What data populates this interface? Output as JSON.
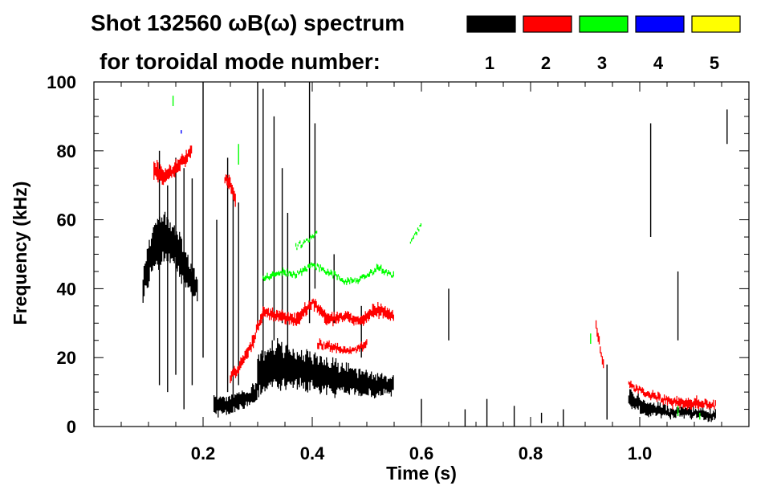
{
  "header": {
    "title": "Shot 132560 ωB(ω) spectrum",
    "subtitle": "for toroidal mode number:"
  },
  "legend": [
    {
      "label": "1",
      "color": "#000000"
    },
    {
      "label": "2",
      "color": "#ff0000"
    },
    {
      "label": "3",
      "color": "#00ff00"
    },
    {
      "label": "4",
      "color": "#0000ff"
    },
    {
      "label": "5",
      "color": "#ffff00"
    }
  ],
  "chart_data": {
    "type": "heatmap",
    "title": "Shot 132560 ωB(ω) spectrum",
    "xlabel": "Time (s)",
    "ylabel": "Frequency (kHz)",
    "xlim": [
      0.0,
      1.2
    ],
    "ylim": [
      0,
      100
    ],
    "x_ticks": [
      0.2,
      0.4,
      0.6,
      0.8,
      1.0
    ],
    "x_tick_labels": [
      "0.2",
      "0.4",
      "0.6",
      "0.8",
      "1.0"
    ],
    "y_ticks": [
      0,
      20,
      40,
      60,
      80,
      100
    ],
    "y_tick_labels": [
      "0",
      "20",
      "40",
      "60",
      "80",
      "100"
    ],
    "series": [
      {
        "name": "n=1",
        "color": "#000000",
        "ridges": [
          {
            "t": [
              0.09,
              0.11,
              0.13,
              0.15,
              0.17,
              0.19
            ],
            "f": [
              42,
              52,
              55,
              52,
              45,
              40
            ],
            "w": [
              10,
              14,
              14,
              14,
              12,
              8
            ]
          },
          {
            "t": [
              0.22,
              0.25,
              0.28,
              0.3
            ],
            "f": [
              6,
              6,
              8,
              10
            ],
            "w": [
              6,
              5,
              5,
              6
            ]
          },
          {
            "t": [
              0.3,
              0.33,
              0.36,
              0.39,
              0.42,
              0.45,
              0.48,
              0.51,
              0.55
            ],
            "f": [
              15,
              18,
              17,
              16,
              15,
              14,
              13,
              12,
              12
            ],
            "w": [
              12,
              14,
              12,
              12,
              11,
              10,
              8,
              7,
              5
            ]
          },
          {
            "t": [
              0.98,
              1.02,
              1.06,
              1.1,
              1.14
            ],
            "f": [
              8,
              5,
              4,
              4,
              3
            ],
            "w": [
              5,
              4,
              3,
              3,
              3
            ]
          }
        ],
        "streaks": [
          {
            "t": 0.12,
            "f": [
              12,
              80
            ]
          },
          {
            "t": 0.135,
            "f": [
              10,
              70
            ]
          },
          {
            "t": 0.15,
            "f": [
              15,
              78
            ]
          },
          {
            "t": 0.165,
            "f": [
              5,
              75
            ]
          },
          {
            "t": 0.18,
            "f": [
              12,
              72
            ]
          },
          {
            "t": 0.2,
            "f": [
              20,
              100
            ]
          },
          {
            "t": 0.225,
            "f": [
              5,
              60
            ]
          },
          {
            "t": 0.245,
            "f": [
              10,
              78
            ]
          },
          {
            "t": 0.255,
            "f": [
              8,
              68
            ]
          },
          {
            "t": 0.265,
            "f": [
              12,
              65
            ]
          },
          {
            "t": 0.3,
            "f": [
              30,
              100
            ]
          },
          {
            "t": 0.31,
            "f": [
              20,
              98
            ]
          },
          {
            "t": 0.33,
            "f": [
              25,
              90
            ]
          },
          {
            "t": 0.345,
            "f": [
              30,
              75
            ]
          },
          {
            "t": 0.355,
            "f": [
              20,
              62
            ]
          },
          {
            "t": 0.395,
            "f": [
              30,
              100
            ]
          },
          {
            "t": 0.405,
            "f": [
              40,
              88
            ]
          },
          {
            "t": 0.44,
            "f": [
              30,
              50
            ]
          },
          {
            "t": 0.49,
            "f": [
              20,
              35
            ]
          },
          {
            "t": 0.6,
            "f": [
              1,
              8
            ]
          },
          {
            "t": 0.68,
            "f": [
              0,
              5
            ]
          },
          {
            "t": 0.72,
            "f": [
              0,
              8
            ]
          },
          {
            "t": 0.77,
            "f": [
              0,
              6
            ]
          },
          {
            "t": 0.82,
            "f": [
              1,
              4
            ]
          },
          {
            "t": 0.86,
            "f": [
              0,
              5
            ]
          },
          {
            "t": 0.94,
            "f": [
              2,
              18
            ]
          },
          {
            "t": 1.02,
            "f": [
              55,
              88
            ]
          },
          {
            "t": 1.07,
            "f": [
              25,
              45
            ]
          },
          {
            "t": 1.16,
            "f": [
              82,
              92
            ]
          },
          {
            "t": 0.65,
            "f": [
              25,
              40
            ]
          }
        ]
      },
      {
        "name": "n=2",
        "color": "#ff0000",
        "ridges": [
          {
            "t": [
              0.11,
              0.13,
              0.15,
              0.17,
              0.18
            ],
            "f": [
              75,
              72,
              75,
              78,
              80
            ],
            "w": [
              6,
              5,
              4,
              4,
              4
            ]
          },
          {
            "t": [
              0.24,
              0.25,
              0.26
            ],
            "f": [
              72,
              70,
              66
            ],
            "w": [
              4,
              4,
              4
            ]
          },
          {
            "t": [
              0.25,
              0.27,
              0.29,
              0.3,
              0.31
            ],
            "f": [
              14,
              18,
              24,
              29,
              32
            ],
            "w": [
              3,
              3,
              4,
              4,
              4
            ]
          },
          {
            "t": [
              0.31,
              0.34,
              0.37,
              0.4,
              0.43,
              0.46,
              0.49,
              0.52,
              0.55
            ],
            "f": [
              33,
              32,
              31,
              36,
              31,
              32,
              31,
              34,
              32
            ],
            "w": [
              3,
              3,
              4,
              3,
              4,
              3,
              3,
              4,
              3
            ]
          },
          {
            "t": [
              0.41,
              0.44,
              0.47,
              0.5
            ],
            "f": [
              24,
              23,
              22,
              24
            ],
            "w": [
              2,
              2,
              2,
              2
            ]
          },
          {
            "t": [
              0.92,
              0.925,
              0.93,
              0.935
            ],
            "f": [
              30,
              25,
              20,
              18
            ],
            "w": [
              3,
              3,
              3,
              3
            ]
          },
          {
            "t": [
              0.98,
              1.02,
              1.06,
              1.1,
              1.14
            ],
            "f": [
              12,
              9,
              7,
              7,
              6
            ],
            "w": [
              2,
              2,
              3,
              3,
              2
            ]
          }
        ]
      },
      {
        "name": "n=3",
        "color": "#00ff00",
        "ridges": [
          {
            "t": [
              0.31,
              0.34,
              0.37,
              0.4,
              0.43,
              0.46,
              0.49,
              0.52,
              0.55
            ],
            "f": [
              43,
              45,
              44,
              47,
              45,
              42,
              43,
              46,
              44
            ],
            "w": [
              1.5,
              1.5,
              1.5,
              1.5,
              1.5,
              1.5,
              1.5,
              1.5,
              1.5
            ]
          },
          {
            "t": [
              0.37,
              0.39,
              0.41
            ],
            "f": [
              52,
              54,
              56
            ],
            "w": [
              1,
              1,
              1
            ]
          },
          {
            "t": [
              0.58,
              0.59,
              0.6
            ],
            "f": [
              54,
              56,
              58
            ],
            "w": [
              1,
              1,
              1
            ]
          }
        ],
        "streaks": [
          {
            "t": 0.145,
            "f": [
              93,
              96
            ]
          },
          {
            "t": 0.265,
            "f": [
              76,
              82
            ]
          },
          {
            "t": 0.91,
            "f": [
              24,
              27
            ]
          },
          {
            "t": 1.07,
            "f": [
              3,
              6
            ]
          },
          {
            "t": 1.11,
            "f": [
              2,
              4
            ]
          }
        ]
      },
      {
        "name": "n=4",
        "color": "#0000ff",
        "streaks": [
          {
            "t": 0.16,
            "f": [
              85,
              86
            ]
          }
        ]
      },
      {
        "name": "n=5",
        "color": "#ffff00",
        "streaks": []
      }
    ]
  }
}
